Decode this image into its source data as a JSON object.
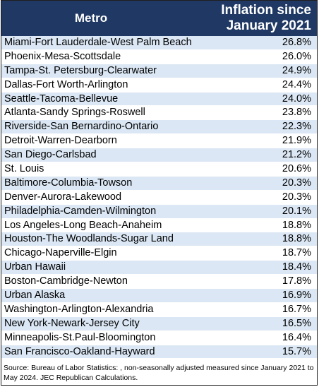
{
  "chart_data": {
    "type": "table",
    "columns": [
      "Metro",
      "Inflation since January 2021"
    ],
    "header": {
      "metro": "Metro",
      "inflation_line1": "Inflation since",
      "inflation_line2": "January 2021"
    },
    "rows": [
      {
        "metro": "Miami-Fort Lauderdale-West Palm Beach",
        "value": "26.8%"
      },
      {
        "metro": "Phoenix-Mesa-Scottsdale",
        "value": "26.0%"
      },
      {
        "metro": "Tampa-St. Petersburg-Clearwater",
        "value": "24.9%"
      },
      {
        "metro": "Dallas-Fort Worth-Arlington",
        "value": "24.4%"
      },
      {
        "metro": "Seattle-Tacoma-Bellevue",
        "value": "24.0%"
      },
      {
        "metro": "Atlanta-Sandy Springs-Roswell",
        "value": "23.8%"
      },
      {
        "metro": "Riverside-San Bernardino-Ontario",
        "value": "22.3%"
      },
      {
        "metro": "Detroit-Warren-Dearborn",
        "value": "21.9%"
      },
      {
        "metro": "San Diego-Carlsbad",
        "value": "21.2%"
      },
      {
        "metro": "St. Louis",
        "value": "20.6%"
      },
      {
        "metro": "Baltimore-Columbia-Towson",
        "value": "20.3%"
      },
      {
        "metro": "Denver-Aurora-Lakewood",
        "value": "20.3%"
      },
      {
        "metro": "Philadelphia-Camden-Wilmington",
        "value": "20.1%"
      },
      {
        "metro": "Los Angeles-Long Beach-Anaheim",
        "value": "18.8%"
      },
      {
        "metro": "Houston-The Woodlands-Sugar Land",
        "value": "18.8%"
      },
      {
        "metro": "Chicago-Naperville-Elgin",
        "value": "18.7%"
      },
      {
        "metro": "Urban Hawaii",
        "value": "18.4%"
      },
      {
        "metro": "Boston-Cambridge-Newton",
        "value": "17.8%"
      },
      {
        "metro": "Urban Alaska",
        "value": "16.9%"
      },
      {
        "metro": "Washington-Arlington-Alexandria",
        "value": "16.7%"
      },
      {
        "metro": "New York-Newark-Jersey City",
        "value": "16.5%"
      },
      {
        "metro": "Minneapolis-St.Paul-Bloomington",
        "value": "16.4%"
      },
      {
        "metro": "San Francisco-Oakland-Hayward",
        "value": "15.7%"
      }
    ],
    "source": "Source: Bureau of Labor Statistics: , non-seasonally adjusted measured since January 2021 to May 2024. JEC Republican Calculations."
  },
  "colors": {
    "header_bg": "#1f3864",
    "row_even": "#dbe7f4",
    "row_odd": "#ffffff"
  }
}
